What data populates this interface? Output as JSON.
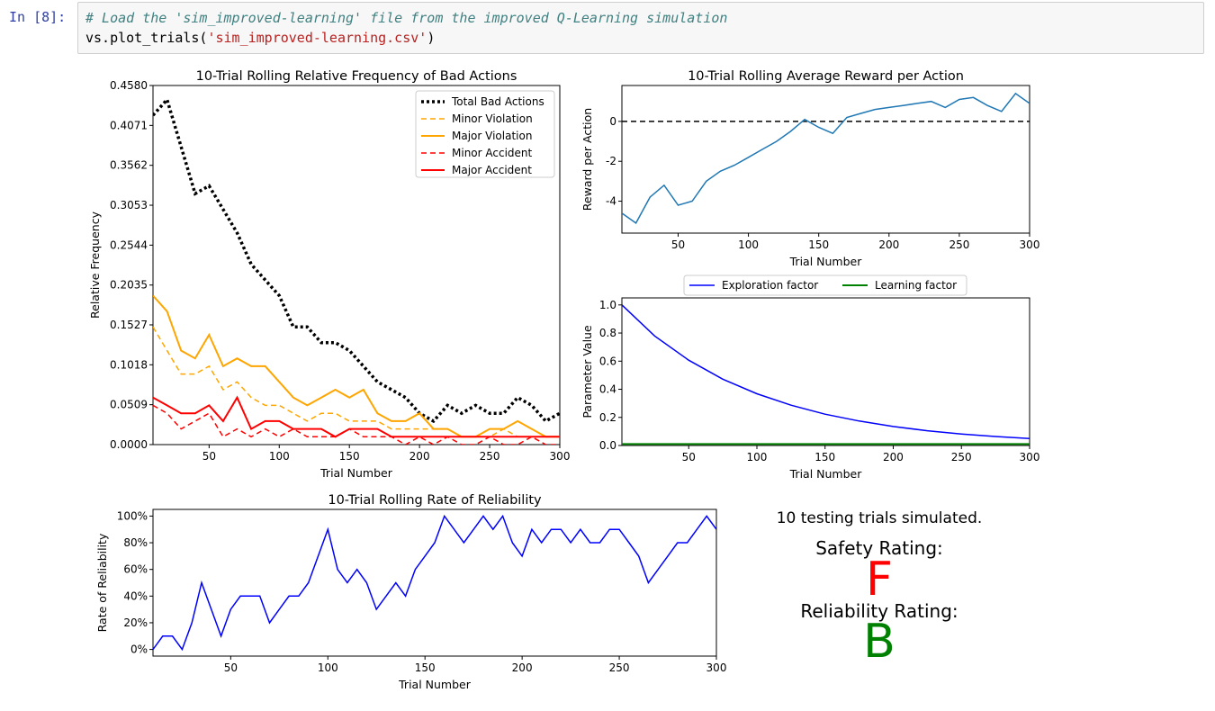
{
  "notebook": {
    "prompt": "In [8]:",
    "code_comment": "# Load the 'sim_improved-learning' file from the improved Q-Learning simulation",
    "code_call_prefix": "vs.plot_trials(",
    "code_call_arg": "'sim_improved-learning.csv'",
    "code_call_suffix": ")"
  },
  "summary": {
    "trials_text": "10 testing trials simulated.",
    "safety_label": "Safety Rating:",
    "safety_grade": "F",
    "reliability_label": "Reliability Rating:",
    "reliability_grade": "B",
    "colors": {
      "safety": "#ff0000",
      "reliability": "#008000"
    }
  },
  "chart_data": [
    {
      "id": "bad",
      "type": "line",
      "title": "10-Trial Rolling Relative Frequency of Bad Actions",
      "xlabel": "Trial Number",
      "ylabel": "Relative Frequency",
      "xlim": [
        10,
        300
      ],
      "ylim": [
        0,
        0.458
      ],
      "xticks": [
        50,
        100,
        150,
        200,
        250,
        300
      ],
      "yticks": [
        0.0,
        0.0509,
        0.1018,
        0.1527,
        0.2035,
        0.2544,
        0.3053,
        0.3562,
        0.4071,
        0.458
      ],
      "ytick_labels": [
        "0.0000",
        "0.0509",
        "0.1018",
        "0.1527",
        "0.2035",
        "0.2544",
        "0.3053",
        "0.3562",
        "0.4071",
        "0.4580"
      ],
      "legend_position": "upper right",
      "x": [
        10,
        20,
        30,
        40,
        50,
        60,
        70,
        80,
        90,
        100,
        110,
        120,
        130,
        140,
        150,
        160,
        170,
        180,
        190,
        200,
        210,
        220,
        230,
        240,
        250,
        260,
        270,
        280,
        290,
        300
      ],
      "series": [
        {
          "name": "Total Bad Actions",
          "color": "#000000",
          "style": "dotted",
          "width": 3.5,
          "values": [
            0.42,
            0.44,
            0.38,
            0.32,
            0.33,
            0.3,
            0.27,
            0.23,
            0.21,
            0.19,
            0.15,
            0.15,
            0.13,
            0.13,
            0.12,
            0.1,
            0.08,
            0.07,
            0.06,
            0.04,
            0.03,
            0.05,
            0.04,
            0.05,
            0.04,
            0.04,
            0.06,
            0.05,
            0.03,
            0.04
          ]
        },
        {
          "name": "Minor Violation",
          "color": "#ffa500",
          "style": "dashed",
          "width": 1.5,
          "values": [
            0.15,
            0.12,
            0.09,
            0.09,
            0.1,
            0.07,
            0.08,
            0.06,
            0.05,
            0.05,
            0.04,
            0.03,
            0.04,
            0.04,
            0.03,
            0.03,
            0.03,
            0.02,
            0.02,
            0.02,
            0.02,
            0.02,
            0.01,
            0.01,
            0.01,
            0.02,
            0.01,
            0.01,
            0.01,
            0.01
          ]
        },
        {
          "name": "Major Violation",
          "color": "#ffa500",
          "style": "solid",
          "width": 2,
          "values": [
            0.19,
            0.17,
            0.12,
            0.11,
            0.14,
            0.1,
            0.11,
            0.1,
            0.1,
            0.08,
            0.06,
            0.05,
            0.06,
            0.07,
            0.06,
            0.07,
            0.04,
            0.03,
            0.03,
            0.04,
            0.02,
            0.02,
            0.01,
            0.01,
            0.02,
            0.02,
            0.03,
            0.02,
            0.01,
            0.01
          ]
        },
        {
          "name": "Minor Accident",
          "color": "#ff0000",
          "style": "dashed",
          "width": 1.5,
          "values": [
            0.05,
            0.04,
            0.02,
            0.03,
            0.04,
            0.01,
            0.02,
            0.01,
            0.02,
            0.01,
            0.02,
            0.01,
            0.01,
            0.01,
            0.02,
            0.01,
            0.01,
            0.01,
            0.0,
            0.01,
            0.0,
            0.01,
            0.0,
            0.0,
            0.01,
            0.0,
            0.0,
            0.01,
            0.0,
            0.0
          ]
        },
        {
          "name": "Major Accident",
          "color": "#ff0000",
          "style": "solid",
          "width": 2,
          "values": [
            0.06,
            0.05,
            0.04,
            0.04,
            0.05,
            0.03,
            0.06,
            0.02,
            0.03,
            0.03,
            0.02,
            0.02,
            0.02,
            0.01,
            0.02,
            0.02,
            0.02,
            0.01,
            0.01,
            0.01,
            0.01,
            0.01,
            0.01,
            0.01,
            0.01,
            0.01,
            0.01,
            0.01,
            0.01,
            0.01
          ]
        }
      ]
    },
    {
      "id": "reward",
      "type": "line",
      "title": "10-Trial Rolling Average Reward per Action",
      "xlabel": "Trial Number",
      "ylabel": "Reward per Action",
      "xlim": [
        10,
        300
      ],
      "ylim": [
        -5.6,
        1.8
      ],
      "xticks": [
        50,
        100,
        150,
        200,
        250,
        300
      ],
      "yticks": [
        -4,
        -2,
        0
      ],
      "ytick_labels": [
        "-4",
        "-2",
        "0"
      ],
      "reference_line": 0,
      "x": [
        10,
        20,
        30,
        40,
        50,
        60,
        70,
        80,
        90,
        100,
        110,
        120,
        130,
        140,
        150,
        160,
        170,
        180,
        190,
        200,
        210,
        220,
        230,
        240,
        250,
        260,
        270,
        280,
        290,
        300
      ],
      "series": [
        {
          "name": "",
          "color": "#1f77b4",
          "style": "solid",
          "width": 1.5,
          "values": [
            -4.6,
            -5.1,
            -3.8,
            -3.2,
            -4.2,
            -4.0,
            -3.0,
            -2.5,
            -2.2,
            -1.8,
            -1.4,
            -1.0,
            -0.5,
            0.1,
            -0.3,
            -0.6,
            0.2,
            0.4,
            0.6,
            0.7,
            0.8,
            0.9,
            1.0,
            0.7,
            1.1,
            1.2,
            0.8,
            0.5,
            1.4,
            0.9
          ]
        }
      ]
    },
    {
      "id": "params",
      "type": "line",
      "title": "",
      "xlabel": "Trial Number",
      "ylabel": "Parameter Value",
      "xlim": [
        1,
        300
      ],
      "ylim": [
        0,
        1.05
      ],
      "xticks": [
        50,
        100,
        150,
        200,
        250,
        300
      ],
      "yticks": [
        0.0,
        0.2,
        0.4,
        0.6,
        0.8,
        1.0
      ],
      "ytick_labels": [
        "0.0",
        "0.2",
        "0.4",
        "0.6",
        "0.8",
        "1.0"
      ],
      "legend_position": "top",
      "x": [
        1,
        25,
        50,
        75,
        100,
        125,
        150,
        175,
        200,
        225,
        250,
        275,
        300
      ],
      "series": [
        {
          "name": "Exploration factor",
          "color": "#0000ff",
          "style": "solid",
          "width": 1.5,
          "values": [
            1.0,
            0.779,
            0.607,
            0.472,
            0.368,
            0.287,
            0.223,
            0.174,
            0.135,
            0.105,
            0.082,
            0.064,
            0.05
          ]
        },
        {
          "name": "Learning factor",
          "color": "#008000",
          "style": "solid",
          "width": 2,
          "values": [
            0.01,
            0.01,
            0.01,
            0.01,
            0.01,
            0.01,
            0.01,
            0.01,
            0.01,
            0.01,
            0.01,
            0.01,
            0.01
          ]
        }
      ]
    },
    {
      "id": "reliability",
      "type": "line",
      "title": "10-Trial Rolling Rate of Reliability",
      "xlabel": "Trial Number",
      "ylabel": "Rate of Reliability",
      "xlim": [
        10,
        300
      ],
      "ylim": [
        -5,
        105
      ],
      "xticks": [
        50,
        100,
        150,
        200,
        250,
        300
      ],
      "yticks": [
        0,
        20,
        40,
        60,
        80,
        100
      ],
      "ytick_labels": [
        "0%",
        "20%",
        "40%",
        "60%",
        "80%",
        "100%"
      ],
      "x": [
        10,
        15,
        20,
        25,
        30,
        35,
        40,
        45,
        50,
        55,
        60,
        65,
        70,
        75,
        80,
        85,
        90,
        95,
        100,
        105,
        110,
        115,
        120,
        125,
        130,
        135,
        140,
        145,
        150,
        155,
        160,
        165,
        170,
        175,
        180,
        185,
        190,
        195,
        200,
        205,
        210,
        215,
        220,
        225,
        230,
        235,
        240,
        245,
        250,
        255,
        260,
        265,
        270,
        275,
        280,
        285,
        290,
        295,
        300
      ],
      "series": [
        {
          "name": "",
          "color": "#0000ff",
          "style": "solid",
          "width": 1.5,
          "values": [
            0,
            10,
            10,
            0,
            20,
            50,
            30,
            10,
            30,
            40,
            40,
            40,
            20,
            30,
            40,
            40,
            50,
            70,
            90,
            60,
            50,
            60,
            50,
            30,
            40,
            50,
            40,
            60,
            70,
            80,
            100,
            90,
            80,
            90,
            100,
            90,
            100,
            80,
            70,
            90,
            80,
            90,
            90,
            80,
            90,
            80,
            80,
            90,
            90,
            80,
            70,
            50,
            60,
            70,
            80,
            80,
            90,
            100,
            90
          ]
        }
      ]
    }
  ]
}
